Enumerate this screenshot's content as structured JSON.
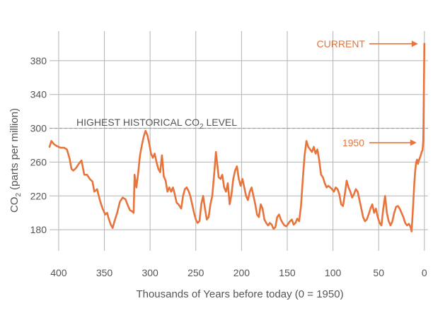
{
  "chart_data": {
    "type": "line",
    "xlabel": "Thousands of Years before today (0 = 1950)",
    "ylabel": "CO₂ (parts per million)",
    "ylabel_parts": {
      "before": "CO",
      "sub": "2",
      "after": " (parts per million)"
    },
    "xlim": [
      410,
      -4
    ],
    "ylim": [
      155,
      415
    ],
    "x_ticks": [
      400,
      350,
      300,
      250,
      200,
      150,
      100,
      50,
      0
    ],
    "y_ticks": [
      180,
      220,
      260,
      300,
      340,
      380
    ],
    "grid": true,
    "series": [
      {
        "color": "#e8743b",
        "points": [
          [
            410,
            278
          ],
          [
            408,
            285
          ],
          [
            405,
            281
          ],
          [
            402,
            279
          ],
          [
            398,
            277
          ],
          [
            394,
            277
          ],
          [
            391,
            275
          ],
          [
            388,
            264
          ],
          [
            386,
            252
          ],
          [
            384,
            250
          ],
          [
            381,
            253
          ],
          [
            378,
            258
          ],
          [
            375,
            262
          ],
          [
            372,
            245
          ],
          [
            369,
            245
          ],
          [
            366,
            240
          ],
          [
            363,
            237
          ],
          [
            361,
            225
          ],
          [
            358,
            228
          ],
          [
            355,
            215
          ],
          [
            352,
            205
          ],
          [
            349,
            198
          ],
          [
            347,
            200
          ],
          [
            345,
            192
          ],
          [
            343,
            186
          ],
          [
            341,
            182
          ],
          [
            339,
            190
          ],
          [
            336,
            200
          ],
          [
            333,
            213
          ],
          [
            330,
            218
          ],
          [
            327,
            216
          ],
          [
            324,
            208
          ],
          [
            322,
            203
          ],
          [
            320,
            202
          ],
          [
            318,
            200
          ],
          [
            317,
            245
          ],
          [
            315,
            230
          ],
          [
            313,
            248
          ],
          [
            311,
            268
          ],
          [
            309,
            280
          ],
          [
            307,
            290
          ],
          [
            305,
            297
          ],
          [
            303,
            292
          ],
          [
            301,
            282
          ],
          [
            299,
            270
          ],
          [
            297,
            265
          ],
          [
            295,
            270
          ],
          [
            293,
            260
          ],
          [
            291,
            252
          ],
          [
            289,
            248
          ],
          [
            287,
            268
          ],
          [
            285,
            243
          ],
          [
            283,
            238
          ],
          [
            281,
            225
          ],
          [
            279,
            230
          ],
          [
            277,
            225
          ],
          [
            275,
            230
          ],
          [
            273,
            222
          ],
          [
            271,
            212
          ],
          [
            269,
            210
          ],
          [
            266,
            205
          ],
          [
            264,
            220
          ],
          [
            262,
            228
          ],
          [
            260,
            230
          ],
          [
            258,
            226
          ],
          [
            256,
            220
          ],
          [
            254,
            210
          ],
          [
            252,
            200
          ],
          [
            250,
            192
          ],
          [
            248,
            188
          ],
          [
            246,
            190
          ],
          [
            244,
            210
          ],
          [
            242,
            220
          ],
          [
            240,
            205
          ],
          [
            238,
            192
          ],
          [
            236,
            195
          ],
          [
            234,
            210
          ],
          [
            232,
            220
          ],
          [
            230,
            245
          ],
          [
            229,
            258
          ],
          [
            228,
            272
          ],
          [
            227,
            262
          ],
          [
            225,
            242
          ],
          [
            223,
            240
          ],
          [
            221,
            245
          ],
          [
            219,
            230
          ],
          [
            217,
            225
          ],
          [
            215,
            235
          ],
          [
            213,
            210
          ],
          [
            211,
            222
          ],
          [
            209,
            240
          ],
          [
            207,
            250
          ],
          [
            205,
            255
          ],
          [
            203,
            240
          ],
          [
            201,
            232
          ],
          [
            199,
            240
          ],
          [
            197,
            230
          ],
          [
            195,
            220
          ],
          [
            193,
            215
          ],
          [
            191,
            225
          ],
          [
            189,
            230
          ],
          [
            187,
            220
          ],
          [
            185,
            210
          ],
          [
            183,
            198
          ],
          [
            181,
            195
          ],
          [
            179,
            210
          ],
          [
            177,
            205
          ],
          [
            175,
            192
          ],
          [
            173,
            188
          ],
          [
            171,
            185
          ],
          [
            169,
            188
          ],
          [
            167,
            186
          ],
          [
            165,
            181
          ],
          [
            163,
            183
          ],
          [
            161,
            195
          ],
          [
            159,
            198
          ],
          [
            157,
            192
          ],
          [
            155,
            188
          ],
          [
            153,
            185
          ],
          [
            151,
            184
          ],
          [
            149,
            187
          ],
          [
            147,
            190
          ],
          [
            145,
            192
          ],
          [
            143,
            186
          ],
          [
            141,
            188
          ],
          [
            139,
            193
          ],
          [
            137,
            190
          ],
          [
            135,
            208
          ],
          [
            133,
            240
          ],
          [
            131,
            268
          ],
          [
            129,
            285
          ],
          [
            127,
            278
          ],
          [
            125,
            275
          ],
          [
            123,
            272
          ],
          [
            121,
            278
          ],
          [
            119,
            270
          ],
          [
            117,
            275
          ],
          [
            115,
            262
          ],
          [
            113,
            245
          ],
          [
            111,
            242
          ],
          [
            109,
            235
          ],
          [
            107,
            230
          ],
          [
            105,
            232
          ],
          [
            103,
            230
          ],
          [
            101,
            228
          ],
          [
            99,
            225
          ],
          [
            97,
            230
          ],
          [
            95,
            228
          ],
          [
            93,
            222
          ],
          [
            91,
            210
          ],
          [
            89,
            208
          ],
          [
            87,
            222
          ],
          [
            85,
            238
          ],
          [
            83,
            230
          ],
          [
            81,
            225
          ],
          [
            79,
            218
          ],
          [
            77,
            222
          ],
          [
            75,
            228
          ],
          [
            73,
            225
          ],
          [
            71,
            215
          ],
          [
            69,
            205
          ],
          [
            67,
            195
          ],
          [
            65,
            190
          ],
          [
            63,
            192
          ],
          [
            61,
            198
          ],
          [
            59,
            205
          ],
          [
            57,
            210
          ],
          [
            55,
            200
          ],
          [
            53,
            205
          ],
          [
            51,
            195
          ],
          [
            49,
            188
          ],
          [
            47,
            185
          ],
          [
            45,
            205
          ],
          [
            43,
            220
          ],
          [
            41,
            200
          ],
          [
            39,
            190
          ],
          [
            37,
            185
          ],
          [
            35,
            190
          ],
          [
            33,
            200
          ],
          [
            31,
            207
          ],
          [
            29,
            208
          ],
          [
            27,
            205
          ],
          [
            25,
            200
          ],
          [
            23,
            195
          ],
          [
            21,
            188
          ],
          [
            19,
            185
          ],
          [
            17,
            187
          ],
          [
            15,
            183
          ],
          [
            14,
            178
          ],
          [
            13,
            195
          ],
          [
            12,
            215
          ],
          [
            11,
            235
          ],
          [
            10,
            250
          ],
          [
            9,
            260
          ],
          [
            8,
            263
          ],
          [
            7,
            258
          ],
          [
            6,
            262
          ],
          [
            5,
            265
          ],
          [
            4,
            268
          ],
          [
            3,
            272
          ],
          [
            2,
            274
          ],
          [
            1.3,
            285
          ],
          [
            1,
            300
          ],
          [
            0.7,
            330
          ],
          [
            0.4,
            360
          ],
          [
            0.2,
            385
          ],
          [
            0,
            400
          ]
        ]
      }
    ],
    "reference_line": {
      "y": 300
    },
    "annotations": {
      "highest": {
        "before": "HIGHEST HISTORICAL CO",
        "sub": "2",
        "after": " LEVEL"
      },
      "current": {
        "label": "CURRENT",
        "y": 400
      },
      "year1950": {
        "label": "1950",
        "y": 283
      }
    }
  }
}
